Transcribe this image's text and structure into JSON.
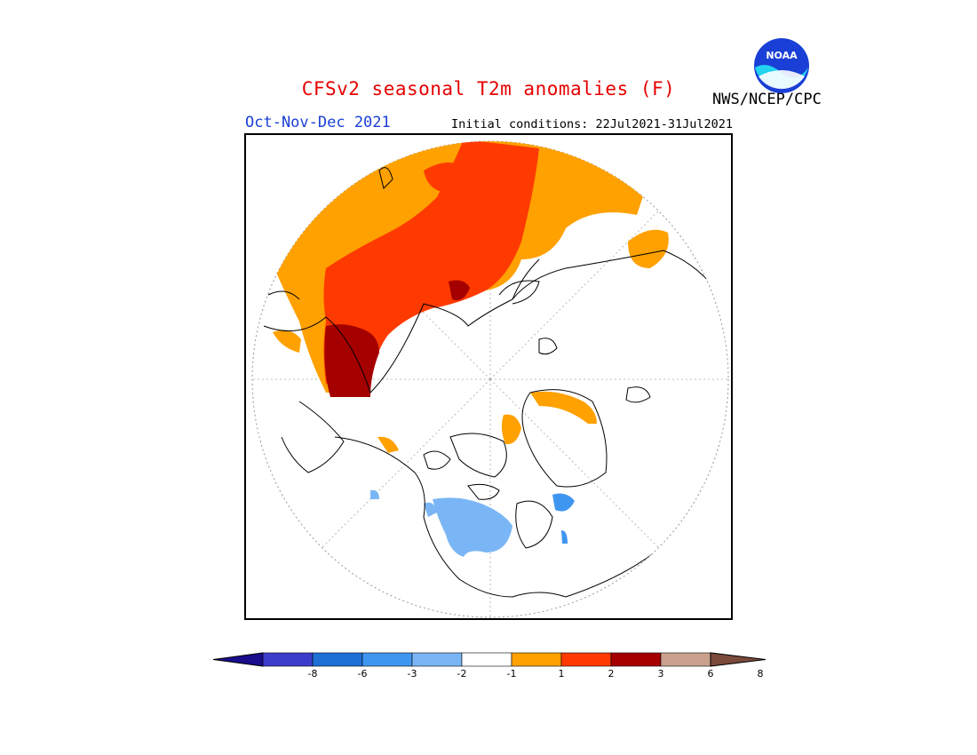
{
  "header": {
    "title": "CFSv2 seasonal T2m anomalies (F)",
    "season": "Oct-Nov-Dec 2021",
    "initial_conditions": "Initial conditions: 22Jul2021-31Jul2021",
    "agency": "NWS/NCEP/CPC",
    "logo_text": "NOAA"
  },
  "colors": {
    "title": "#e60000",
    "season": "#1a3fd6",
    "bins": [
      "#1a0d8c",
      "#3d3dcc",
      "#1e6fd6",
      "#3f96f0",
      "#7ab6f5",
      "#ffffff",
      "#ffa100",
      "#ff3a00",
      "#a50000",
      "#c8a08c",
      "#7a4a3a"
    ]
  },
  "legend": {
    "tick_labels": [
      "-8",
      "-6",
      "-3",
      "-2",
      "-1",
      "1",
      "2",
      "3",
      "6",
      "8"
    ]
  }
}
